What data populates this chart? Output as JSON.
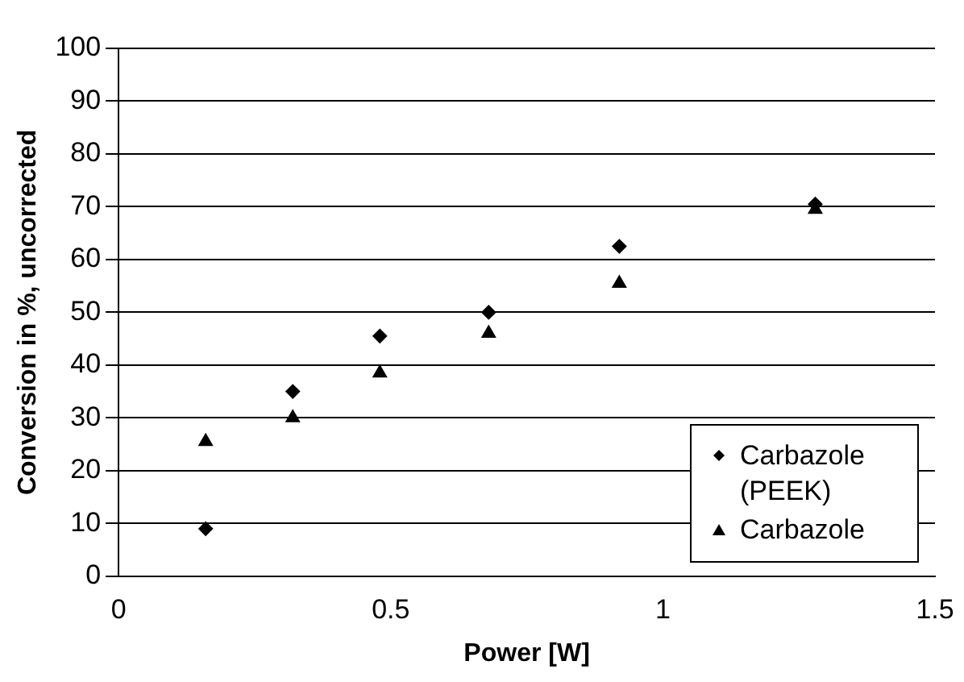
{
  "chart_data": {
    "type": "scatter",
    "xlabel": "Power [W]",
    "ylabel": "Conversion in %, uncorrected",
    "xlim": [
      0,
      1.5
    ],
    "xticks": [
      0,
      0.5,
      1,
      1.5
    ],
    "ylim": [
      0,
      100
    ],
    "yticks": [
      0,
      10,
      20,
      30,
      40,
      50,
      60,
      70,
      80,
      90,
      100
    ],
    "grid": "y",
    "legend": "bottom right",
    "series": [
      {
        "name": "Carbazole (PEEK)",
        "color": "#000000",
        "marker": "diamond",
        "x": [
          0.16,
          0.32,
          0.48,
          0.68,
          0.92,
          1.28
        ],
        "values": [
          9,
          35,
          45.5,
          50,
          62.5,
          70.5
        ]
      },
      {
        "name": "Carbazole",
        "color": "#000000",
        "marker": "triangle",
        "x": [
          0.16,
          0.32,
          0.48,
          0.68,
          0.92,
          1.28
        ],
        "values": [
          25.5,
          30,
          38.5,
          46,
          55.5,
          69.5
        ]
      }
    ]
  }
}
